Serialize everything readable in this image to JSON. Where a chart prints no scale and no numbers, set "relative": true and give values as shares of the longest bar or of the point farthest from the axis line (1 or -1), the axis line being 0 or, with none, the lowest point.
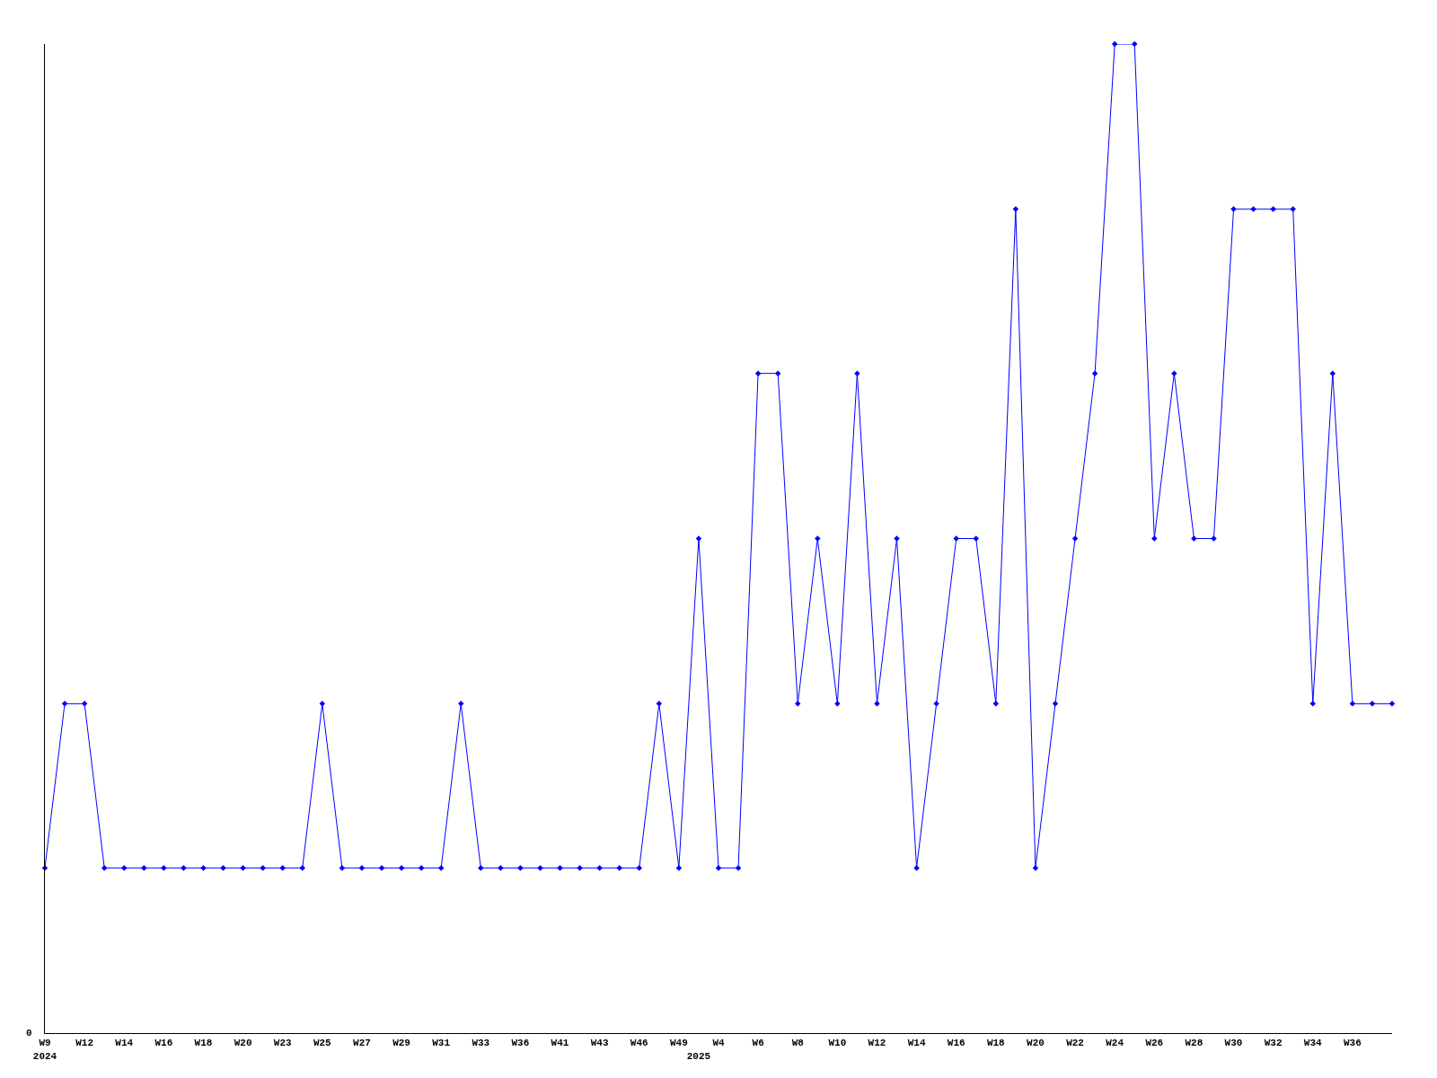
{
  "chart_data": {
    "type": "line",
    "relative": true,
    "marker": "diamond",
    "line_style": "solid",
    "categories": [
      "W9\n2024",
      null,
      "W12",
      null,
      "W14",
      null,
      "W16",
      null,
      "W18",
      null,
      "W20",
      null,
      "W23",
      null,
      "W25",
      null,
      "W27",
      null,
      "W29",
      null,
      "W31",
      null,
      "W33",
      null,
      "W36",
      null,
      "W41",
      null,
      "W43",
      null,
      "W46",
      null,
      "W49",
      "\n2025",
      "W4",
      null,
      "W6",
      null,
      "W8",
      null,
      "W10",
      null,
      "W12",
      null,
      "W14",
      null,
      "W16",
      null,
      "W18",
      null,
      "W20",
      null,
      "W22",
      null,
      "W24",
      null,
      "W26",
      null,
      "W28",
      null,
      "W30",
      null,
      "W32",
      null,
      "W34",
      null,
      "W36",
      null,
      null
    ],
    "series": [
      {
        "color": "#0000ff",
        "values": [
          0.167,
          0.333,
          0.333,
          0.167,
          0.167,
          0.167,
          0.167,
          0.167,
          0.167,
          0.167,
          0.167,
          0.167,
          0.167,
          0.167,
          0.333,
          0.167,
          0.167,
          0.167,
          0.167,
          0.167,
          0.167,
          0.333,
          0.167,
          0.167,
          0.167,
          0.167,
          0.167,
          0.167,
          0.167,
          0.167,
          0.167,
          0.333,
          0.167,
          0.5,
          0.167,
          0.167,
          0.667,
          0.667,
          0.333,
          0.5,
          0.333,
          0.667,
          0.333,
          0.5,
          0.167,
          0.333,
          0.5,
          0.5,
          0.333,
          0.833,
          0.167,
          0.333,
          0.5,
          0.667,
          1,
          1,
          0.5,
          0.667,
          0.5,
          0.5,
          0.833,
          0.833,
          0.833,
          0.833,
          0.333,
          0.667,
          0.333,
          0.333,
          0.333
        ]
      }
    ],
    "annotations": [
      "0"
    ]
  }
}
